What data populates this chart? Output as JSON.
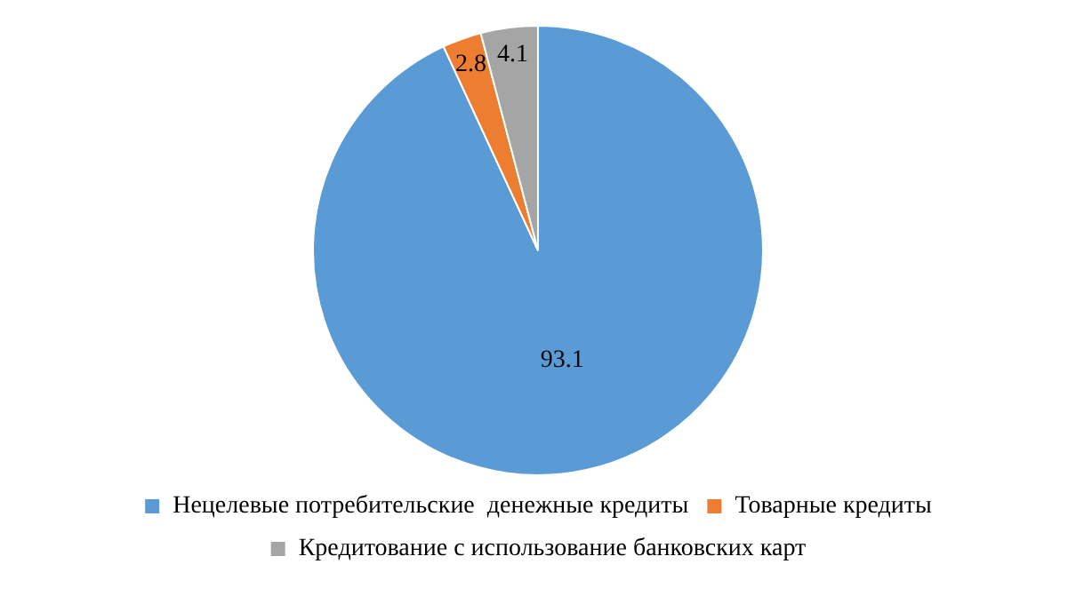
{
  "chart_data": {
    "type": "pie",
    "categories": [
      "Нецелевые потребительские  денежные кредиты",
      "Товарные кредиты",
      "Кредитование с использование банковских карт"
    ],
    "values": [
      93.1,
      2.8,
      4.1
    ],
    "colors": [
      "#5b9bd5",
      "#ed7d31",
      "#a5a5a5"
    ],
    "data_labels": true,
    "legend": "bottom"
  }
}
